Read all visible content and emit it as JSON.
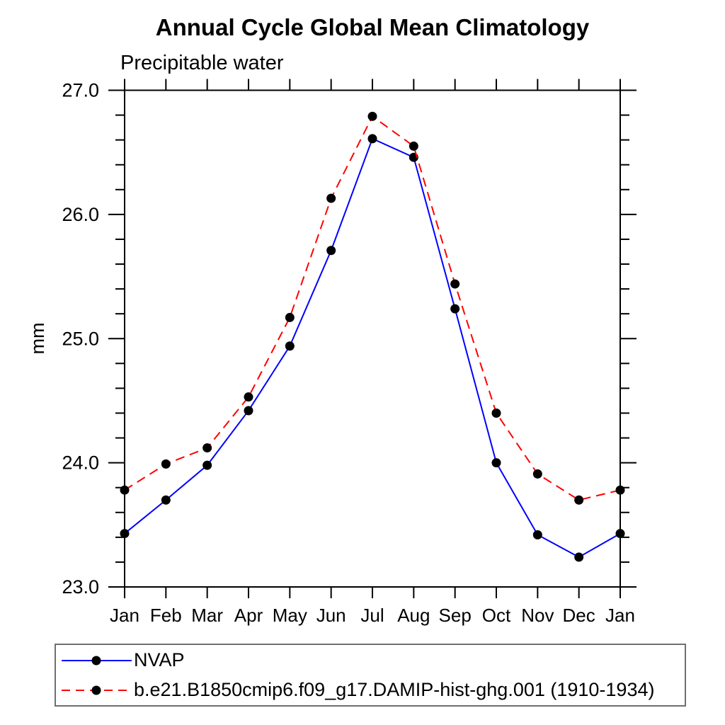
{
  "header": {
    "title": "Annual Cycle Global Mean Climatology",
    "subtitle": "Precipitable water"
  },
  "chart_data": {
    "type": "line",
    "title": "Annual Cycle Global Mean Climatology",
    "subtitle": "Precipitable water",
    "xlabel": "",
    "ylabel": "mm",
    "categories": [
      "Jan",
      "Feb",
      "Mar",
      "Apr",
      "May",
      "Jun",
      "Jul",
      "Aug",
      "Sep",
      "Oct",
      "Nov",
      "Dec",
      "Jan"
    ],
    "ylim": [
      23.0,
      27.0
    ],
    "ytick_major_labels": [
      "23.0",
      "24.0",
      "25.0",
      "26.0",
      "27.0"
    ],
    "ytick_minor_step": 0.2,
    "grid": false,
    "legend_position": "bottom-left-box",
    "axis_color": "#000000",
    "marker_color": "#000000",
    "series": [
      {
        "name": "NVAP",
        "color": "#0000ff",
        "line_style": "solid",
        "marker": "filled-circle",
        "values": [
          23.43,
          23.7,
          23.98,
          24.42,
          24.94,
          25.71,
          26.61,
          26.46,
          25.24,
          24.0,
          23.42,
          23.24,
          23.43
        ]
      },
      {
        "name": "b.e21.B1850cmip6.f09_g17.DAMIP-hist-ghg.001 (1910-1934)",
        "color": "#ff0000",
        "line_style": "dashed",
        "marker": "filled-circle",
        "values": [
          23.78,
          23.99,
          24.12,
          24.53,
          25.17,
          26.13,
          26.79,
          26.55,
          25.44,
          24.4,
          23.91,
          23.7,
          23.78
        ]
      }
    ]
  }
}
